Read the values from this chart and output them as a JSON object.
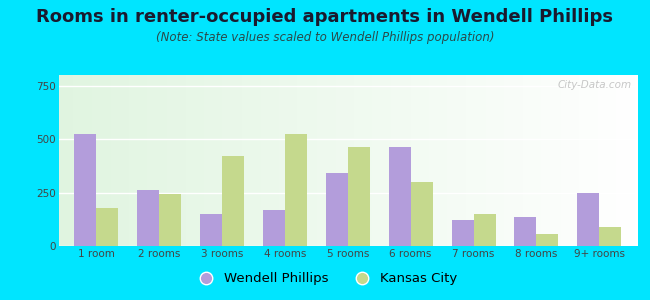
{
  "title": "Rooms in renter-occupied apartments in Wendell Phillips",
  "subtitle": "(Note: State values scaled to Wendell Phillips population)",
  "categories": [
    "1 room",
    "2 rooms",
    "3 rooms",
    "4 rooms",
    "5 rooms",
    "6 rooms",
    "7 rooms",
    "8 rooms",
    "9+ rooms"
  ],
  "wendell_values": [
    525,
    263,
    148,
    168,
    343,
    462,
    120,
    138,
    248
  ],
  "kansas_values": [
    178,
    245,
    420,
    525,
    462,
    300,
    148,
    58,
    90
  ],
  "wendell_color": "#b39ddb",
  "kansas_color": "#c5d98d",
  "bg_outer": "#00e5ff",
  "ylim": [
    0,
    800
  ],
  "yticks": [
    0,
    250,
    500,
    750
  ],
  "legend_wendell": "Wendell Phillips",
  "legend_kansas": "Kansas City",
  "bar_width": 0.35,
  "title_fontsize": 13,
  "subtitle_fontsize": 8.5,
  "tick_fontsize": 7.5,
  "legend_fontsize": 9.5,
  "title_color": "#1a1a2e",
  "subtitle_color": "#2a4a4a",
  "tick_color": "#444444"
}
